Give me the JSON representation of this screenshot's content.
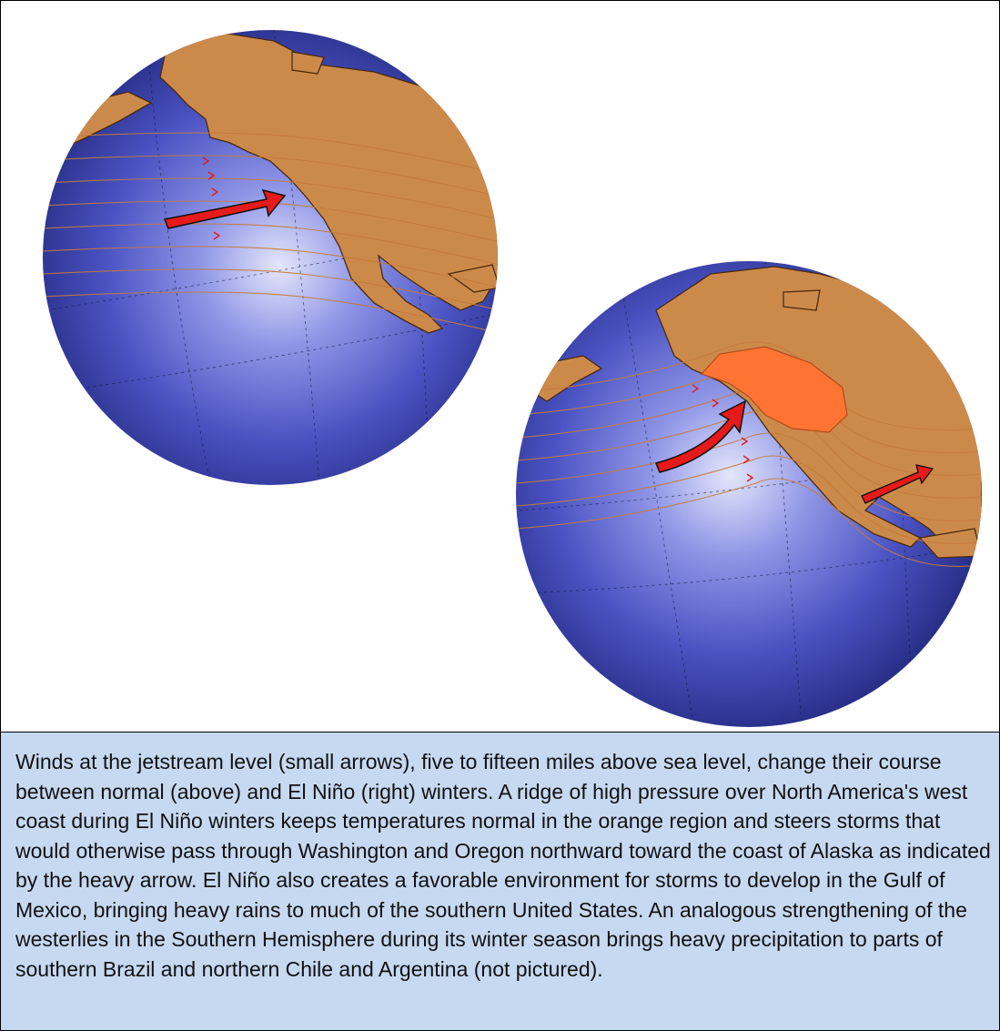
{
  "figure": {
    "colors": {
      "ocean_light": "#d9dcf8",
      "ocean_mid": "#5a62cc",
      "ocean_dark": "#1e2476",
      "land": "#cc8a4a",
      "land_outline": "#4a2a10",
      "ridge": "#ff7433",
      "arrow": "#e61a1a",
      "caption_bg": "#c6d9f1"
    },
    "globes": [
      {
        "id": "normal-winter",
        "arrows": [
          "storm-track-arrow"
        ]
      },
      {
        "id": "el-nino-winter",
        "arrows": [
          "storm-track-arrow",
          "gulf-arrow"
        ],
        "highlight": "high-pressure-ridge"
      }
    ]
  },
  "caption": {
    "text": "Winds at the jetstream level (small arrows), five to fifteen miles above sea level, change their course between normal (above) and El Niño (right) winters. A ridge of high pressure over North America's west coast during El Niño winters keeps temperatures normal in the orange region and steers storms that would otherwise pass through Washington and Oregon northward toward the coast of Alaska as indicated by the heavy arrow. El Niño also creates a favorable environment for storms to develop in the Gulf of Mexico, bringing heavy rains to much of the southern United States. An analogous strengthening of the westerlies in the Southern Hemisphere during its winter season brings heavy precipitation to parts of southern Brazil and northern Chile and Argentina (not pictured)."
  }
}
